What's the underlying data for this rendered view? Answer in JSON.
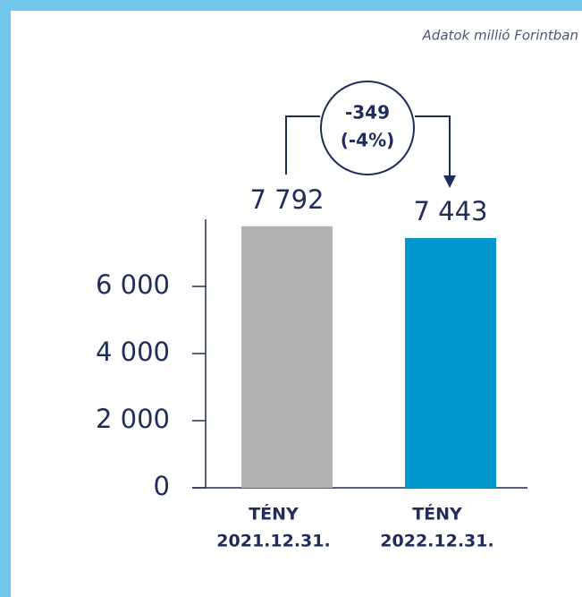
{
  "chart_data": {
    "type": "bar",
    "note": "Adatok millió Forintban",
    "categories": [
      [
        "TÉNY",
        "2021.12.31."
      ],
      [
        "TÉNY",
        "2022.12.31."
      ]
    ],
    "values": [
      7792,
      7443
    ],
    "value_labels": [
      "7 792",
      "7 443"
    ],
    "colors": [
      "#b2b2b2",
      "#0098cc"
    ],
    "ylim": [
      0,
      8000
    ],
    "yticks": [
      0,
      {
        "value": 2000,
        "label": "2 000"
      },
      {
        "value": 4000,
        "label": "4 000"
      },
      {
        "value": 6000,
        "label": "6 000"
      }
    ],
    "annotation": [
      "-349",
      "(-4%)"
    ]
  }
}
